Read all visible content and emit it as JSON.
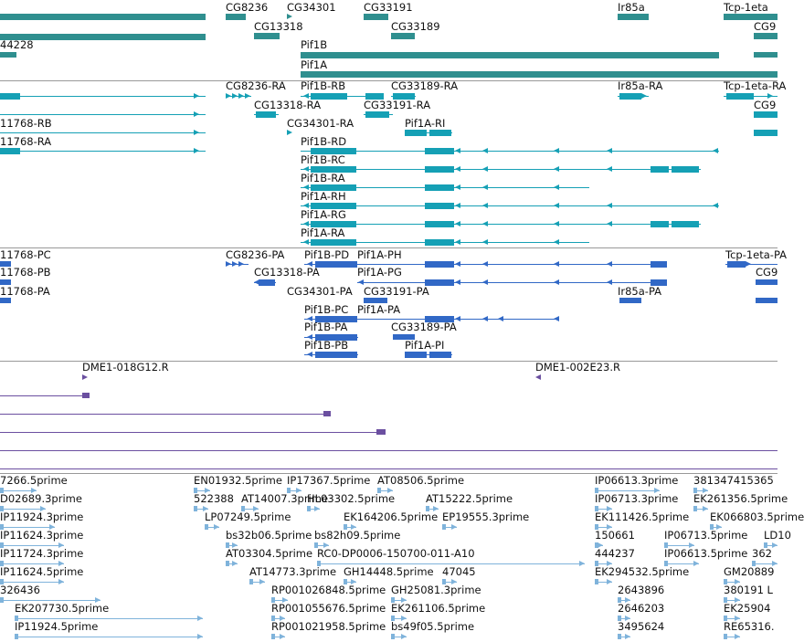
{
  "colors": {
    "gene": "#2f8f8f",
    "transcript": "#15a0b5",
    "protein": "#3168c6",
    "clone": "#6b4fa0",
    "est": "#7fb3db",
    "divider": "#999999"
  },
  "genes": [
    "CG8236",
    "CG34301",
    "CG33191",
    "Ir85a",
    "Tcp-1eta",
    "44228",
    "CG13318",
    "CG33189",
    "CG9",
    "Pif1B",
    "Pif1A"
  ],
  "transcripts": [
    "CG8236-RA",
    "Pif1B-RB",
    "CG33189-RA",
    "Ir85a-RA",
    "Tcp-1eta-RA",
    "CG13318-RA",
    "CG33191-RA",
    "CG9",
    "11768-RB",
    "CG34301-RA",
    "Pif1A-RI",
    "11768-RA",
    "Pif1B-RD",
    "Pif1B-RC",
    "Pif1B-RA",
    "Pif1A-RH",
    "Pif1A-RG",
    "Pif1A-RA"
  ],
  "proteins": [
    "11768-PC",
    "CG8236-PA",
    "Pif1B-PD",
    "Pif1A-PH",
    "Tcp-1eta-PA",
    "11768-PB",
    "CG13318-PA",
    "Pif1A-PG",
    "CG9",
    "11768-PA",
    "CG34301-PA",
    "CG33191-PA",
    "Ir85a-PA",
    "Pif1B-PC",
    "Pif1A-PA",
    "Pif1B-PA",
    "CG33189-PA",
    "Pif1B-PB",
    "Pif1A-PI"
  ],
  "clones": [
    "DME1-018G12.R",
    "DME1-002E23.R"
  ],
  "ests": [
    "7266.5prime",
    "EN01932.5prime",
    "IP17367.5prime",
    "AT08506.5prime",
    "IP06613.3prime",
    "381347415365",
    "D02689.3prime",
    "522388",
    "AT14007.3prime",
    "HL03302.5prime",
    "AT15222.5prime",
    "IP06713.3prime",
    "EK261356.5prime",
    "IP11924.3prime",
    "LP07249.5prime",
    "EK164206.5prime",
    "EP19555.3prime",
    "EK111426.5prime",
    "EK066803.5prime",
    "IP11624.3prime",
    "bs32b06.5prime",
    "bs82h09.5prime",
    "150661",
    "IP06713.5prime",
    "LD10",
    "IP11724.3prime",
    "AT03304.5prime",
    "RC0-DP0006-150700-011-A10",
    "444237",
    "IP06613.5prime",
    "362",
    "IP11624.5prime",
    "AT14773.3prime",
    "GH14448.5prime",
    "47045",
    "EK294532.5prime",
    "GM20889",
    "326436",
    "RP001026848.5prime",
    "GH25081.3prime",
    "2643896",
    "380191 L",
    "EK207730.5prime",
    "RP001055676.5prime",
    "EK261106.5prime",
    "2646203",
    "EK25904",
    "IP11924.5prime",
    "RP001021958.5prime",
    "bs49f05.5prime",
    "3495624",
    "RE65316."
  ]
}
